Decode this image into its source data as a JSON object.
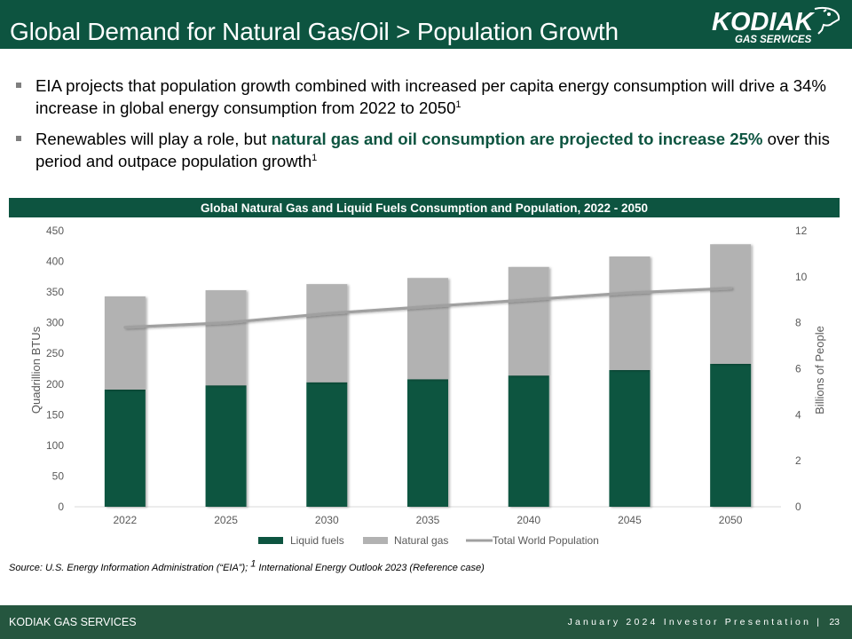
{
  "header": {
    "title": "Global Demand for Natural Gas/Oil > Population Growth",
    "logo": {
      "main": "KODIAK",
      "sub": "GAS SERVICES",
      "icon": "bear-head-icon"
    }
  },
  "bullets": [
    {
      "pre": "EIA projects that population growth combined with increased per capita energy consumption will drive a 34% increase in global energy consumption from 2022 to 2050",
      "highlight": "",
      "post": "",
      "sup": "1"
    },
    {
      "pre": "Renewables will play a role, but ",
      "highlight": "natural gas and oil consumption are projected to increase 25%",
      "post": " over this period and outpace population growth",
      "sup": "1"
    }
  ],
  "colors": {
    "brand_green": "#0d5440",
    "natural_gas_gray": "#b2b2b2",
    "population_line": "#a0a0a0",
    "footer_green": "#25563f"
  },
  "chart_data": {
    "type": "bar",
    "stacked": true,
    "title": "Global Natural Gas and Liquid Fuels Consumption and Population, 2022 - 2050",
    "categories": [
      "2022",
      "2025",
      "2030",
      "2035",
      "2040",
      "2045",
      "2050"
    ],
    "series": [
      {
        "name": "Liquid fuels",
        "kind": "bar",
        "axis": "left",
        "color": "#0d5440",
        "values": [
          191,
          198,
          203,
          208,
          214,
          223,
          233
        ]
      },
      {
        "name": "Natural gas",
        "kind": "bar",
        "axis": "left",
        "color": "#b2b2b2",
        "values": [
          152,
          155,
          160,
          165,
          177,
          185,
          195
        ]
      },
      {
        "name": "Total World Population",
        "kind": "line",
        "axis": "right",
        "color": "#a0a0a0",
        "values": [
          7.8,
          8.0,
          8.4,
          8.7,
          9.0,
          9.3,
          9.5
        ]
      }
    ],
    "ylabel": "Quadrillion BTUs",
    "ylim": [
      0,
      450
    ],
    "yticks": [
      0,
      50,
      100,
      150,
      200,
      250,
      300,
      350,
      400,
      450
    ],
    "y2label": "Billions of People",
    "y2lim": [
      0,
      12
    ],
    "y2ticks": [
      0,
      2,
      4,
      6,
      8,
      10,
      12
    ],
    "grid": false,
    "legend": "bottom"
  },
  "source": "Source: U.S. Energy Information Administration (“EIA”); ",
  "source_sup": "1",
  "source_rest": " International Energy Outlook 2023 (Reference case)",
  "footer": {
    "company": "KODIAK GAS SERVICES",
    "presentation": "January 2024 Investor Presentation |",
    "page": "23"
  }
}
